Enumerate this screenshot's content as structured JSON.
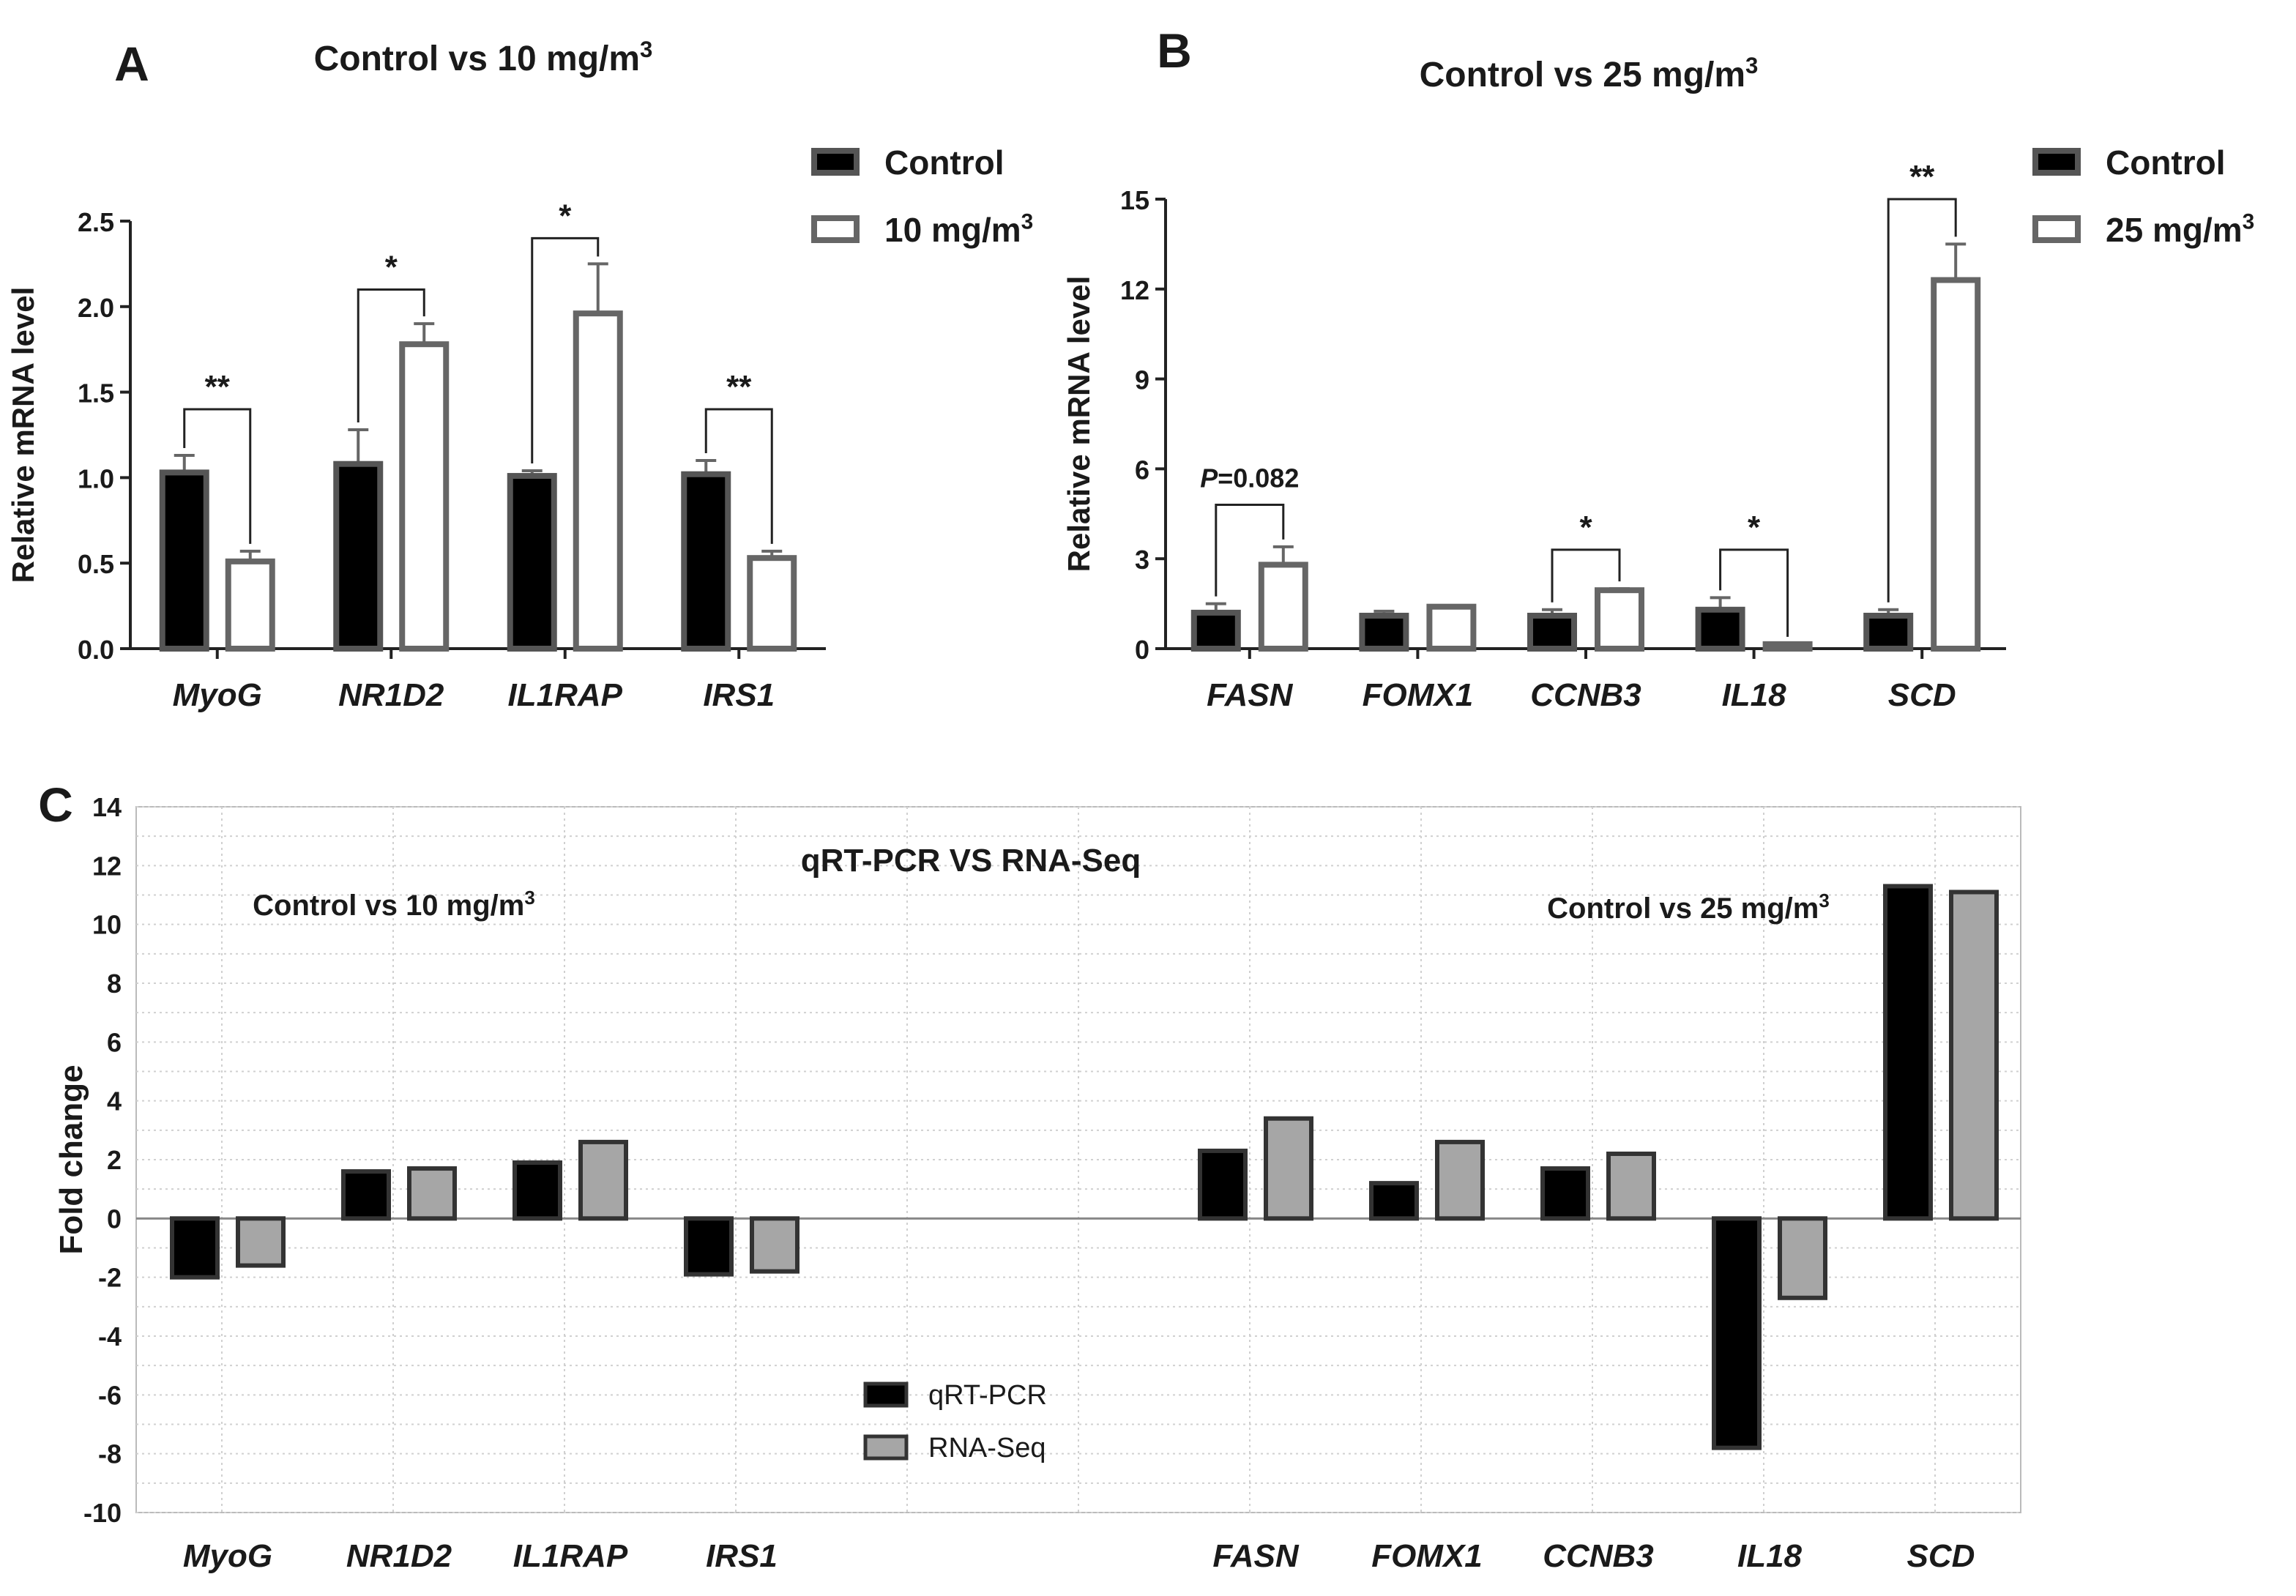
{
  "chart_data": [
    {
      "type": "bar",
      "panel_letter": "A",
      "title": "Control vs 10 mg/m",
      "title_sup": "3",
      "ylabel": "Relative mRNA level",
      "ylim": [
        0,
        2.5
      ],
      "yticks": [
        "0.0",
        "0.5",
        "1.0",
        "1.5",
        "2.0",
        "2.5"
      ],
      "categories": [
        "MyoG",
        "NR1D2",
        "IL1RAP",
        "IRS1"
      ],
      "series": [
        {
          "name": "Control",
          "values": [
            1.03,
            1.08,
            1.01,
            1.02
          ],
          "errors": [
            0.1,
            0.2,
            0.03,
            0.08
          ]
        },
        {
          "name": "10 mg/m",
          "name_sup": "3",
          "values": [
            0.51,
            1.78,
            1.96,
            0.53
          ],
          "errors": [
            0.06,
            0.12,
            0.29,
            0.04
          ]
        }
      ],
      "significance": [
        {
          "category": 0,
          "label": "**",
          "height": 1.4
        },
        {
          "category": 1,
          "label": "*",
          "height": 2.1
        },
        {
          "category": 2,
          "label": "*",
          "height": 2.4
        },
        {
          "category": 3,
          "label": "**",
          "height": 1.4
        }
      ]
    },
    {
      "type": "bar",
      "panel_letter": "B",
      "title": "Control vs 25 mg/m",
      "title_sup": "3",
      "ylabel": "Relative mRNA level",
      "ylim": [
        0,
        15
      ],
      "yticks": [
        "0",
        "3",
        "6",
        "9",
        "12",
        "15"
      ],
      "categories": [
        "FASN",
        "FOMX1",
        "CCNB3",
        "IL18",
        "SCD"
      ],
      "series": [
        {
          "name": "Control",
          "values": [
            1.2,
            1.1,
            1.1,
            1.3,
            1.1
          ],
          "errors": [
            0.3,
            0.15,
            0.2,
            0.4,
            0.2
          ]
        },
        {
          "name": "25 mg/m",
          "name_sup": "3",
          "values": [
            2.8,
            1.4,
            1.95,
            0.15,
            12.3
          ],
          "errors": [
            0.6,
            0.0,
            0.05,
            0.0,
            1.2
          ]
        }
      ],
      "significance": [
        {
          "category": 0,
          "label": "=0.082",
          "label_prefix": "P",
          "height": 4.8
        },
        {
          "category": 2,
          "label": "*",
          "height": 3.3
        },
        {
          "category": 3,
          "label": "*",
          "height": 3.3
        },
        {
          "category": 4,
          "label": "**",
          "height": 15.0
        }
      ]
    },
    {
      "type": "bar",
      "panel_letter": "C",
      "title": "qRT-PCR VS RNA-Seq",
      "ylabel": "Fold change",
      "ylim": [
        -10,
        14
      ],
      "yticks": [
        "-10",
        "-8",
        "-6",
        "-4",
        "-2",
        "0",
        "2",
        "4",
        "6",
        "8",
        "10",
        "12",
        "14"
      ],
      "group_labels": [
        {
          "text": "Control vs 10 mg/m",
          "sup": "3"
        },
        {
          "text": "Control vs 25 mg/m",
          "sup": "3"
        }
      ],
      "categories": [
        "MyoG",
        "NR1D2",
        "IL1RAP",
        "IRS1",
        "FASN",
        "FOMX1",
        "CCNB3",
        "IL18",
        "SCD"
      ],
      "series": [
        {
          "name": "qRT-PCR",
          "values": [
            -2.0,
            1.6,
            1.9,
            -1.9,
            2.3,
            1.2,
            1.7,
            -7.8,
            11.3
          ]
        },
        {
          "name": "RNA-Seq",
          "values": [
            -1.6,
            1.7,
            2.6,
            -1.8,
            3.4,
            2.6,
            2.2,
            -2.7,
            11.1
          ]
        }
      ]
    }
  ]
}
